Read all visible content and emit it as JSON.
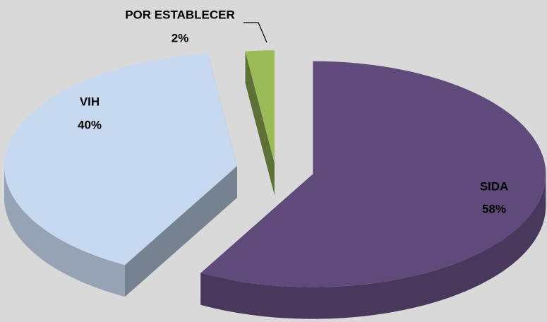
{
  "chart_data": {
    "type": "pie",
    "categories": [
      "SIDA",
      "VIH",
      "POR ESTABLECER"
    ],
    "values": [
      58,
      40,
      2
    ],
    "value_labels": [
      "58%",
      "40%",
      "2%"
    ],
    "colors": [
      "#5f4a7b",
      "#c6d9f0",
      "#9bbb59"
    ]
  }
}
